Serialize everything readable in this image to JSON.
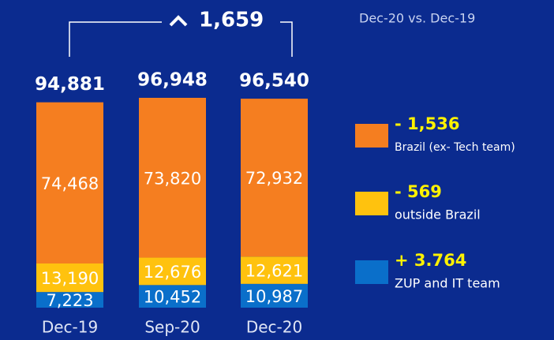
{
  "chart_data": {
    "type": "stacked-bar",
    "subtitle": "Dec-20 vs. Dec-19",
    "annotation": "1,659",
    "categories": [
      "Dec-19",
      "Sep-20",
      "Dec-20"
    ],
    "totals": [
      94881,
      96948,
      96540
    ],
    "total_labels": [
      "94,881",
      "96,948",
      "96,540"
    ],
    "series": [
      {
        "name": "ZUP and IT team",
        "color": "#0a6fca",
        "values": [
          7223,
          10452,
          10987
        ],
        "value_labels": [
          "7,223",
          "10,452",
          "10,987"
        ],
        "change_label": "+ 3.764"
      },
      {
        "name": "outside Brazil",
        "color": "#ffc20e",
        "values": [
          13190,
          12676,
          12621
        ],
        "value_labels": [
          "13,190",
          "12,676",
          "12,621"
        ],
        "change_label": "- 569"
      },
      {
        "name": "Brazil (ex- Tech team)",
        "color": "#f57e20",
        "values": [
          74468,
          73820,
          72932
        ],
        "value_labels": [
          "74,468",
          "73,820",
          "72,932"
        ],
        "change_label": "- 1,536"
      }
    ]
  }
}
